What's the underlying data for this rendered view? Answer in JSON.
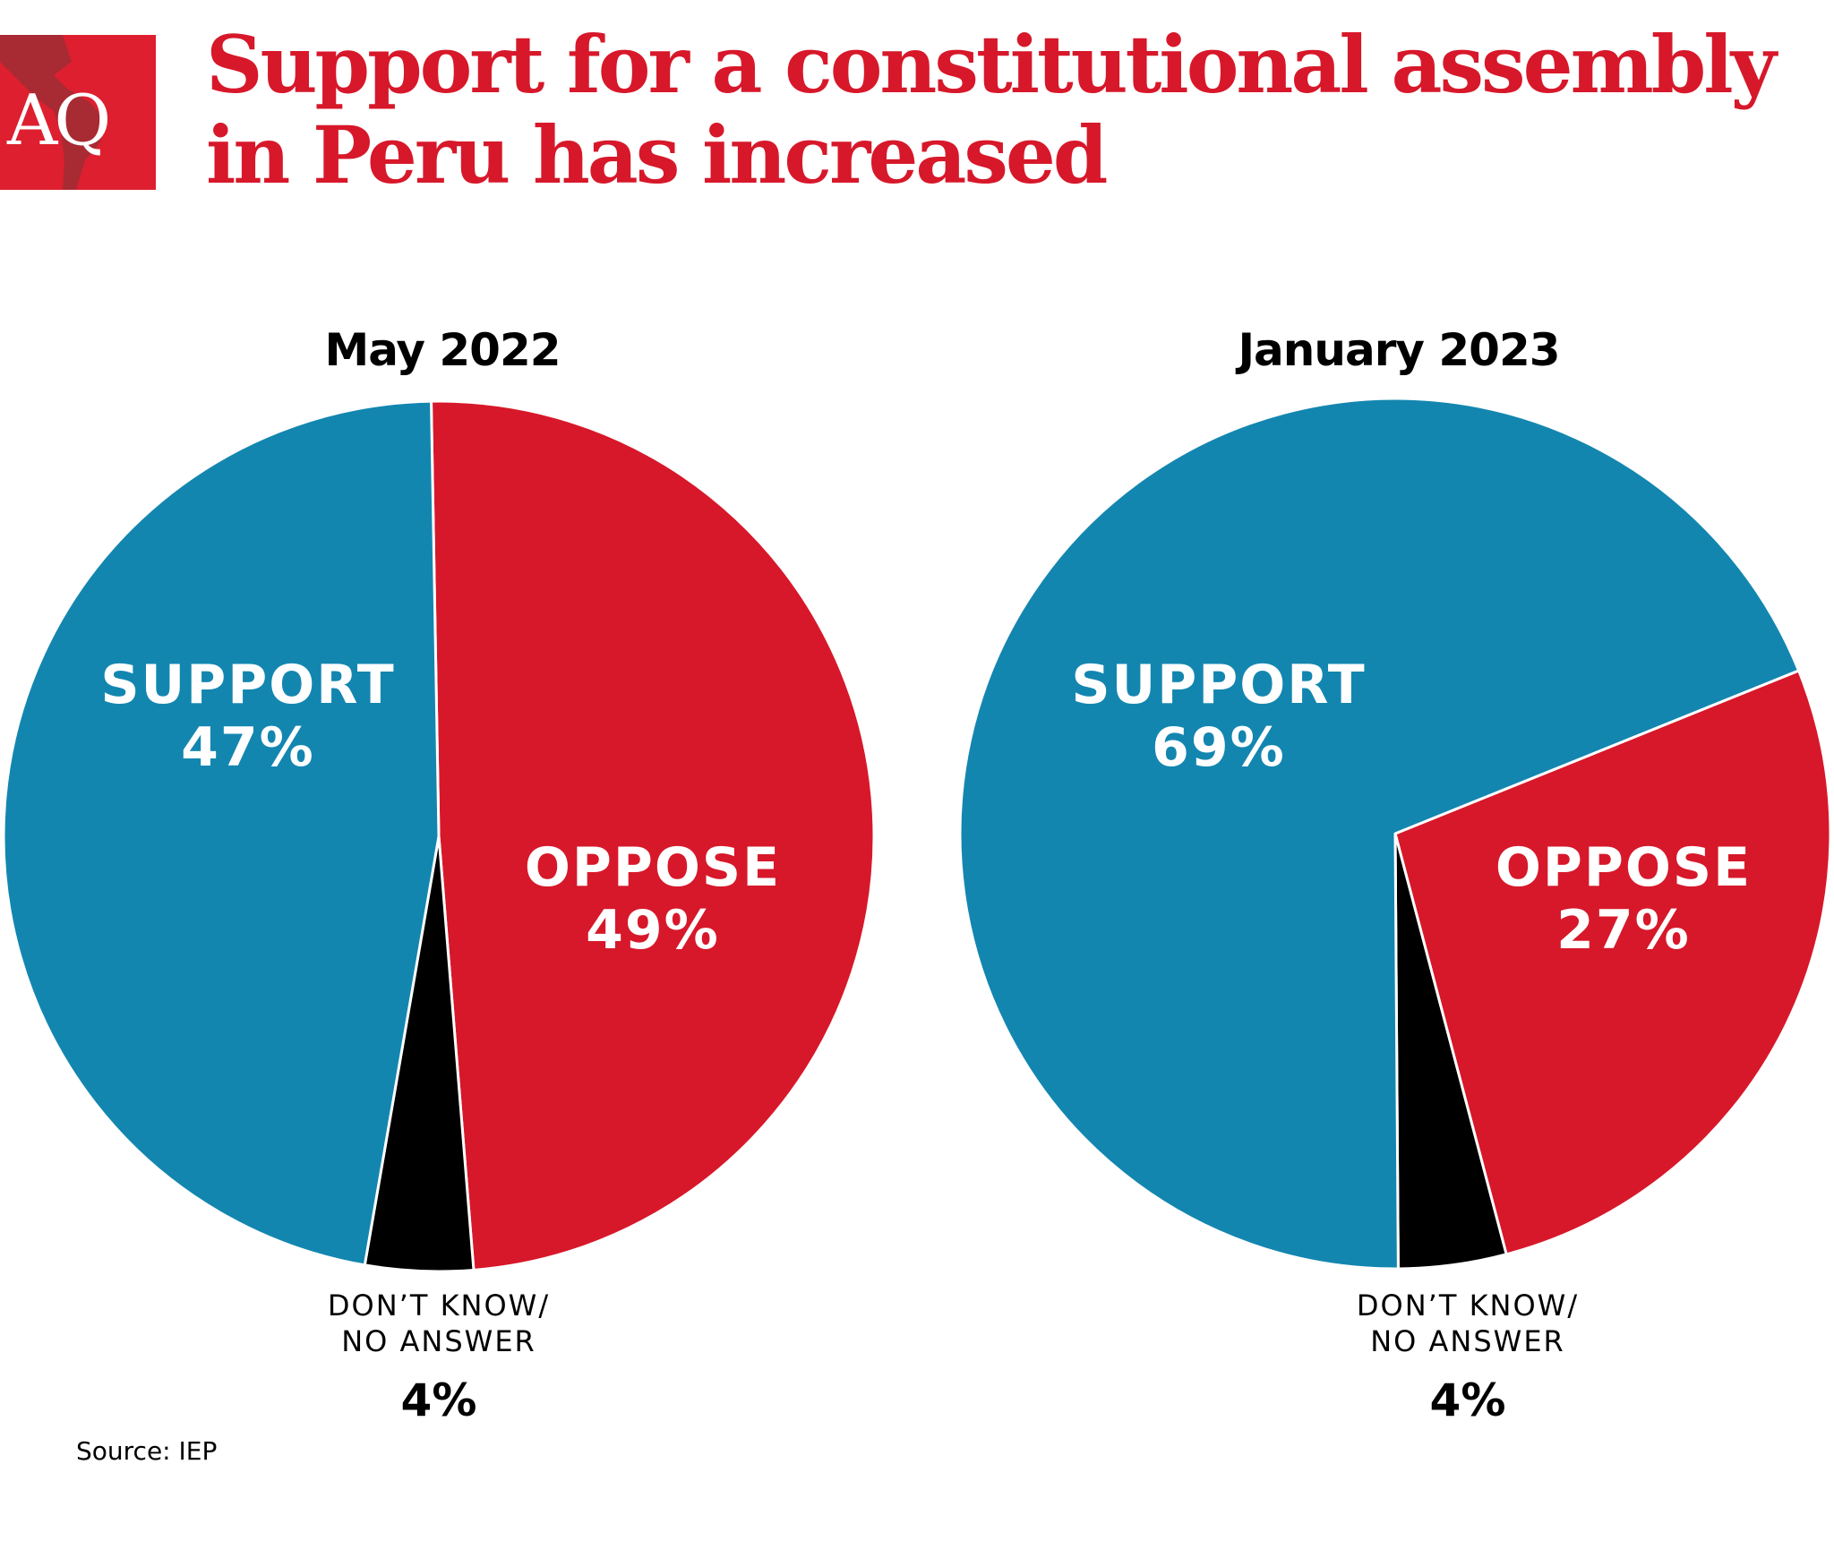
{
  "logo": {
    "text": "AQ"
  },
  "title": {
    "line1": "Support for a constitutional assembly",
    "line2": "in Peru has increased"
  },
  "source": "Source: IEP",
  "colors": {
    "support": "#1386b0",
    "oppose": "#d7182a",
    "dont_know": "#000000",
    "title": "#d7182a"
  },
  "chart_data": [
    {
      "type": "pie",
      "title": "May 2022",
      "slices": [
        {
          "label": "SUPPORT",
          "value": 47,
          "value_label": "47%"
        },
        {
          "label": "OPPOSE",
          "value": 49,
          "value_label": "49%"
        },
        {
          "label": "DON'T KNOW/ NO ANSWER",
          "label_line1": "DON’T KNOW/",
          "label_line2": "NO ANSWER",
          "value": 4,
          "value_label": "4%"
        }
      ]
    },
    {
      "type": "pie",
      "title": "January 2023",
      "slices": [
        {
          "label": "SUPPORT",
          "value": 69,
          "value_label": "69%"
        },
        {
          "label": "OPPOSE",
          "value": 27,
          "value_label": "27%"
        },
        {
          "label": "DON'T KNOW/ NO ANSWER",
          "label_line1": "DON’T KNOW/",
          "label_line2": "NO ANSWER",
          "value": 4,
          "value_label": "4%"
        }
      ]
    }
  ]
}
